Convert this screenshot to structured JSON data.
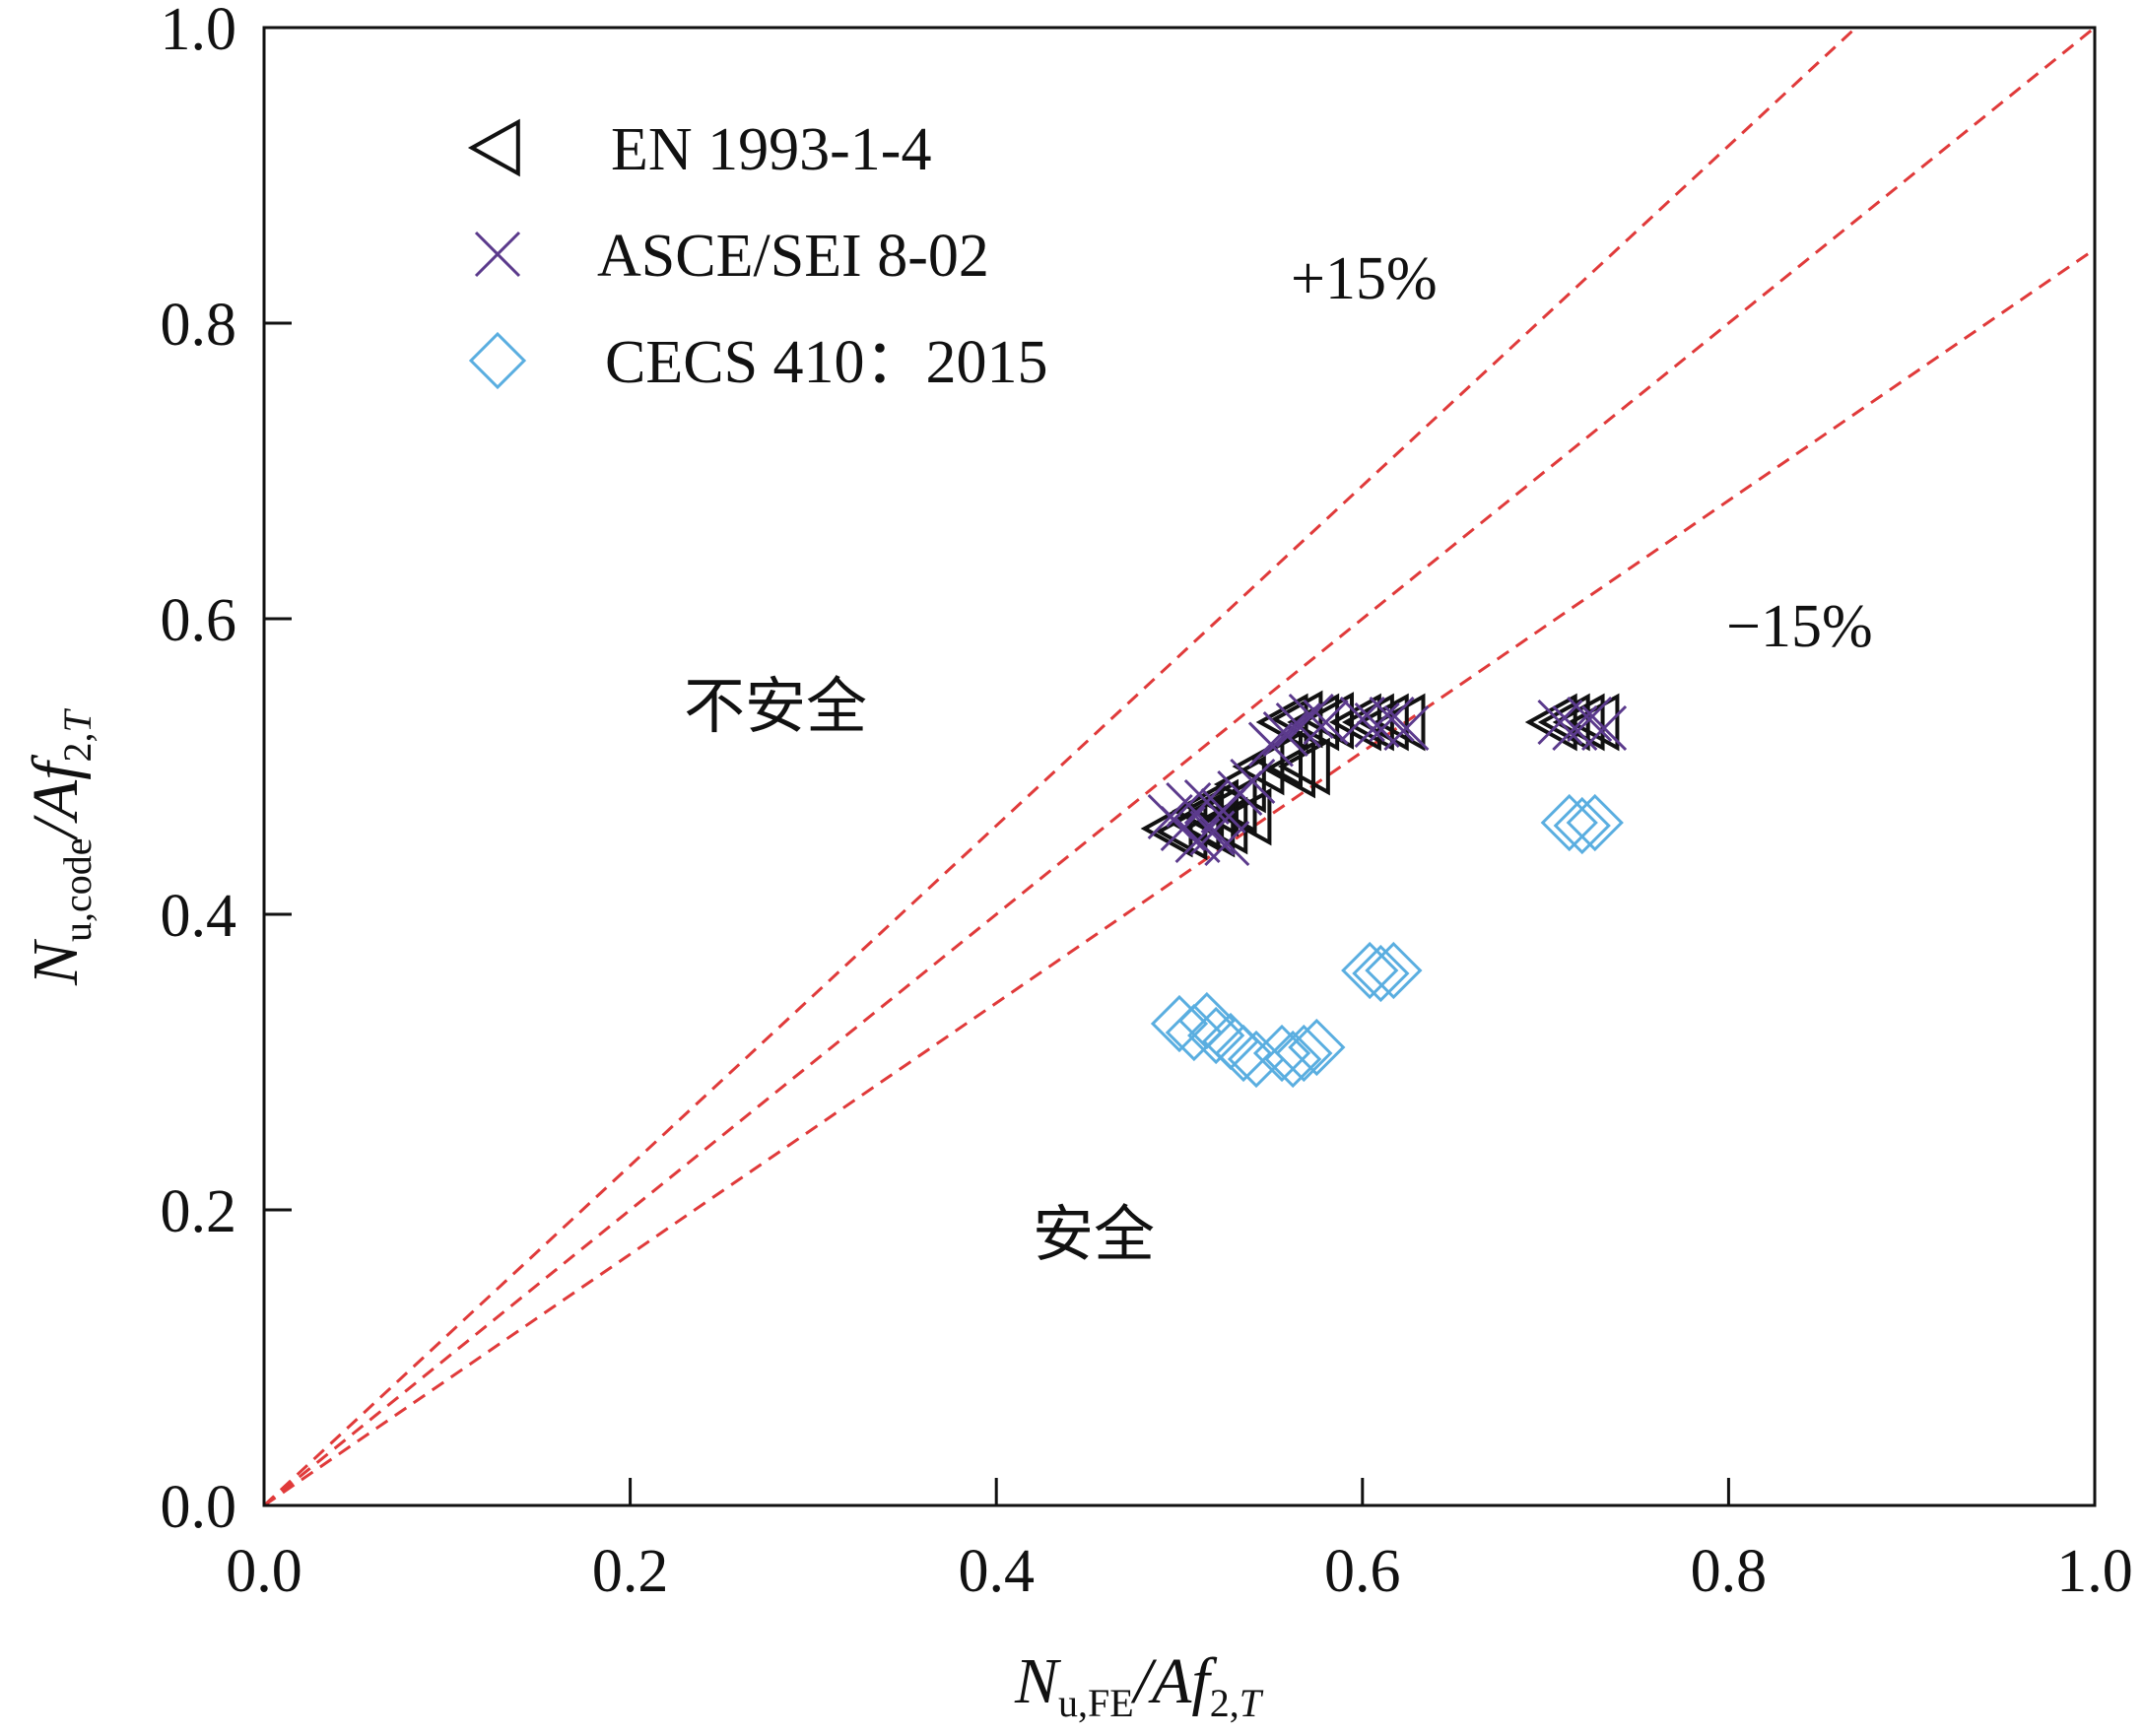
{
  "chart_data": {
    "type": "scatter",
    "xlim": [
      0,
      1
    ],
    "ylim": [
      0,
      1
    ],
    "x_ticks": [
      "0.0",
      "0.2",
      "0.4",
      "0.6",
      "0.8",
      "1.0"
    ],
    "y_ticks": [
      "0.0",
      "0.2",
      "0.4",
      "0.6",
      "0.8",
      "1.0"
    ],
    "xlabel": {
      "main": "N",
      "sub": "u,FE",
      "rest": "/Af",
      "sub2": "2,",
      "sub3": "T"
    },
    "ylabel": {
      "main": "N",
      "sub": "u,code",
      "rest": "/Af",
      "sub2": "2,",
      "sub3": "T"
    },
    "grid": false,
    "legend_position": "top-left",
    "reference_lines": [
      {
        "label": "+15%",
        "slope": 1.15,
        "color": "#e03a3a",
        "style": "dashed"
      },
      {
        "label": "",
        "slope": 1.0,
        "color": "#e03a3a",
        "style": "dashed"
      },
      {
        "label": "−15%",
        "slope": 0.85,
        "color": "#e03a3a",
        "style": "dashed"
      }
    ],
    "annotations": {
      "unsafe": "不安全",
      "safe": "安全",
      "plus": "+15%",
      "minus": "−15%"
    },
    "series": [
      {
        "name": "EN 1993‑1‑4",
        "marker": "triangle-left",
        "color": "#111111",
        "points": [
          [
            0.495,
            0.458
          ],
          [
            0.503,
            0.456
          ],
          [
            0.51,
            0.462
          ],
          [
            0.518,
            0.458
          ],
          [
            0.525,
            0.46
          ],
          [
            0.512,
            0.47
          ],
          [
            0.52,
            0.472
          ],
          [
            0.53,
            0.474
          ],
          [
            0.538,
            0.466
          ],
          [
            0.535,
            0.488
          ],
          [
            0.545,
            0.5
          ],
          [
            0.555,
            0.505
          ],
          [
            0.562,
            0.498
          ],
          [
            0.57,
            0.5
          ],
          [
            0.558,
            0.53
          ],
          [
            0.566,
            0.532
          ],
          [
            0.575,
            0.53
          ],
          [
            0.583,
            0.531
          ],
          [
            0.598,
            0.53
          ],
          [
            0.605,
            0.53
          ],
          [
            0.613,
            0.53
          ],
          [
            0.622,
            0.53
          ],
          [
            0.705,
            0.53
          ],
          [
            0.712,
            0.53
          ],
          [
            0.72,
            0.53
          ],
          [
            0.728,
            0.53
          ]
        ]
      },
      {
        "name": "ASCE/SEI 8‑02",
        "marker": "x",
        "color": "#5b3a8c",
        "points": [
          [
            0.495,
            0.466
          ],
          [
            0.502,
            0.458
          ],
          [
            0.51,
            0.45
          ],
          [
            0.518,
            0.455
          ],
          [
            0.526,
            0.448
          ],
          [
            0.505,
            0.474
          ],
          [
            0.515,
            0.476
          ],
          [
            0.524,
            0.47
          ],
          [
            0.533,
            0.482
          ],
          [
            0.54,
            0.49
          ],
          [
            0.55,
            0.515
          ],
          [
            0.558,
            0.522
          ],
          [
            0.565,
            0.528
          ],
          [
            0.572,
            0.534
          ],
          [
            0.58,
            0.53
          ],
          [
            0.6,
            0.532
          ],
          [
            0.608,
            0.528
          ],
          [
            0.616,
            0.532
          ],
          [
            0.624,
            0.526
          ],
          [
            0.708,
            0.53
          ],
          [
            0.716,
            0.526
          ],
          [
            0.724,
            0.532
          ],
          [
            0.732,
            0.526
          ]
        ]
      },
      {
        "name": "CECS 410：2015",
        "marker": "diamond",
        "color": "#5aaee0",
        "points": [
          [
            0.5,
            0.326
          ],
          [
            0.508,
            0.32
          ],
          [
            0.515,
            0.328
          ],
          [
            0.52,
            0.318
          ],
          [
            0.528,
            0.314
          ],
          [
            0.535,
            0.306
          ],
          [
            0.542,
            0.302
          ],
          [
            0.556,
            0.306
          ],
          [
            0.562,
            0.302
          ],
          [
            0.568,
            0.306
          ],
          [
            0.575,
            0.31
          ],
          [
            0.604,
            0.362
          ],
          [
            0.61,
            0.36
          ],
          [
            0.617,
            0.362
          ],
          [
            0.713,
            0.462
          ],
          [
            0.72,
            0.46
          ],
          [
            0.727,
            0.462
          ]
        ]
      }
    ]
  }
}
